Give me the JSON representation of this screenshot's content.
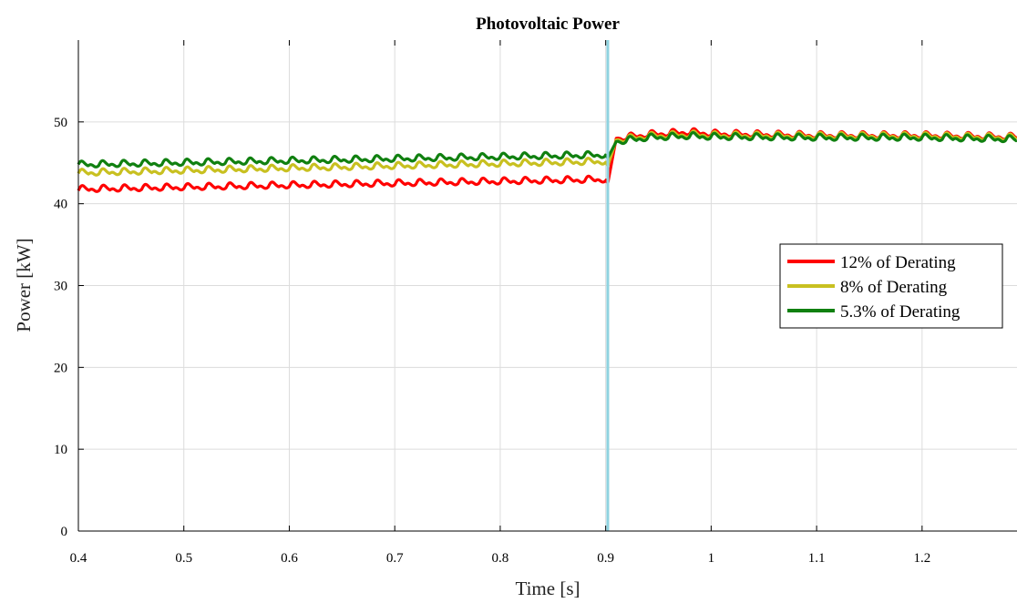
{
  "chart_data": {
    "type": "line",
    "title": "Photovoltaic Power",
    "xlabel": "Time [s]",
    "ylabel": "Power [kW]",
    "xlim": [
      0.4,
      1.29
    ],
    "ylim": [
      0,
      60
    ],
    "xticks": [
      0.4,
      0.5,
      0.6,
      0.7,
      0.8,
      0.9,
      1,
      1.1,
      1.2
    ],
    "xtick_labels": [
      "0.4",
      "0.5",
      "0.6",
      "0.7",
      "0.8",
      "0.9",
      "1",
      "1.1",
      "1.2"
    ],
    "yticks": [
      0,
      10,
      20,
      30,
      40,
      50
    ],
    "ytick_labels": [
      "0",
      "10",
      "20",
      "30",
      "40",
      "50"
    ],
    "grid": true,
    "legend_position": "right",
    "event_marker": {
      "x": 0.902,
      "color": "#8fd3e0"
    },
    "ripple_frequency_hz": 50,
    "series": [
      {
        "name": "12% of Derating",
        "color": "#ff0000",
        "x": [
          0.4,
          0.9,
          0.902,
          0.91,
          0.94,
          0.98,
          1.0,
          1.1,
          1.2,
          1.29
        ],
        "y": [
          41.8,
          43.0,
          42.5,
          48.0,
          48.5,
          48.8,
          48.6,
          48.4,
          48.4,
          48.2
        ]
      },
      {
        "name": "8% of Derating",
        "color": "#c8c020",
        "x": [
          0.4,
          0.9,
          0.902,
          0.91,
          0.94,
          0.98,
          1.0,
          1.1,
          1.2,
          1.29
        ],
        "y": [
          43.8,
          45.2,
          44.6,
          47.8,
          48.3,
          48.5,
          48.4,
          48.3,
          48.3,
          48.1
        ]
      },
      {
        "name": "5.3% of Derating",
        "color": "#108010",
        "x": [
          0.4,
          0.9,
          0.902,
          0.91,
          0.94,
          0.98,
          1.0,
          1.1,
          1.2,
          1.29
        ],
        "y": [
          44.8,
          46.0,
          45.6,
          47.6,
          48.1,
          48.3,
          48.2,
          48.1,
          48.1,
          47.9
        ]
      }
    ]
  }
}
